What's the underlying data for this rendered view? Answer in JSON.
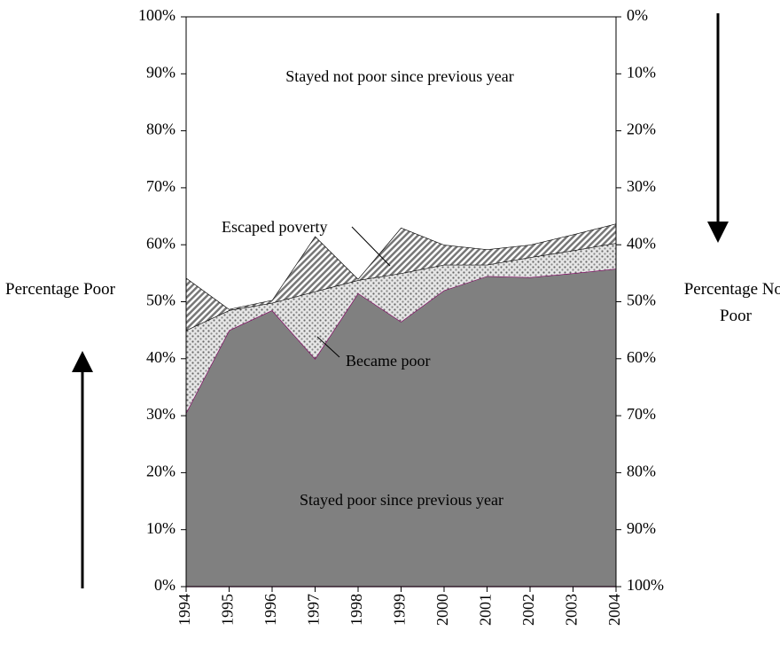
{
  "chart_data": {
    "type": "stacked-area",
    "categories": [
      "1994",
      "1995",
      "1996",
      "1997",
      "1998",
      "1999",
      "2000",
      "2001",
      "2002",
      "2003",
      "2004"
    ],
    "series": [
      {
        "name": "Stayed poor since previous year",
        "color": "#808080",
        "pattern": "solid",
        "values": [
          30.5,
          45,
          48.5,
          40,
          51.5,
          46.5,
          52,
          54.5,
          54.3,
          55,
          55.8
        ]
      },
      {
        "name": "Became poor",
        "color": "#b0b0b0",
        "pattern": "dots",
        "values": [
          14.5,
          3.5,
          1.3,
          11.8,
          2.3,
          8.5,
          4.5,
          2,
          3.5,
          4,
          4.5
        ]
      },
      {
        "name": "Escaped poverty",
        "color": "#8a8a8a",
        "pattern": "hatch",
        "values": [
          9.2,
          0.2,
          0.5,
          9.7,
          0.2,
          8,
          3.5,
          2.7,
          2.2,
          2.8,
          3.4
        ]
      },
      {
        "name": "Stayed not poor since previous year",
        "color": "#ffffff",
        "pattern": "solid",
        "values": [
          45.8,
          51.3,
          49.7,
          38.5,
          46,
          37,
          40,
          40.8,
          40,
          38.2,
          36.3
        ]
      }
    ],
    "ylabel": "Percentage Poor",
    "y2label": "Percentage Not Poor",
    "ylim": [
      0,
      100
    ],
    "yticks": [
      {
        "value": 0,
        "label": "0%"
      },
      {
        "value": 10,
        "label": "10%"
      },
      {
        "value": 20,
        "label": "20%"
      },
      {
        "value": 30,
        "label": "30%"
      },
      {
        "value": 40,
        "label": "40%"
      },
      {
        "value": 50,
        "label": "50%"
      },
      {
        "value": 60,
        "label": "60%"
      },
      {
        "value": 70,
        "label": "70%"
      },
      {
        "value": 80,
        "label": "80%"
      },
      {
        "value": 90,
        "label": "90%"
      },
      {
        "value": 100,
        "label": "100%"
      }
    ],
    "y2lim": [
      100,
      0
    ],
    "y2ticks": [
      {
        "value": 0,
        "label": "0%"
      },
      {
        "value": 10,
        "label": "10%"
      },
      {
        "value": 20,
        "label": "20%"
      },
      {
        "value": 30,
        "label": "30%"
      },
      {
        "value": 40,
        "label": "40%"
      },
      {
        "value": 50,
        "label": "50%"
      },
      {
        "value": 60,
        "label": "60%"
      },
      {
        "value": 70,
        "label": "70%"
      },
      {
        "value": 80,
        "label": "80%"
      },
      {
        "value": 90,
        "label": "90%"
      },
      {
        "value": 100,
        "label": "100%"
      }
    ],
    "grid": false
  }
}
